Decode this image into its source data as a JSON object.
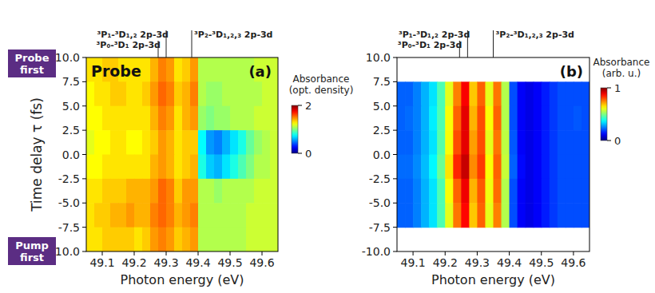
{
  "chart_data": [
    {
      "type": "heatmap",
      "title": "Probe",
      "panel": "(a)",
      "side_labels": [
        "Probe first",
        "Pump first"
      ],
      "xlabel": "Photon energy (eV)",
      "ylabel": "Time delay τ (fs)",
      "xlim": [
        49.05,
        49.65
      ],
      "ylim": [
        -10,
        10
      ],
      "xticks": [
        49.1,
        49.2,
        49.3,
        49.4,
        49.5,
        49.6
      ],
      "yticks": [
        {
          "value": 10,
          "label": "10.0"
        },
        7.5,
        {
          "value": 5,
          "label": "5.0"
        },
        2.5,
        {
          "value": 0,
          "label": "0.0"
        },
        -2.5,
        {
          "value": -5,
          "label": "-5.0"
        },
        -7.5,
        {
          "value": -10,
          "label": "-10.0"
        }
      ],
      "x_bins": [
        49.05,
        49.075,
        49.1,
        49.125,
        49.15,
        49.175,
        49.2,
        49.225,
        49.25,
        49.275,
        49.3,
        49.325,
        49.35,
        49.375,
        49.4,
        49.425,
        49.45,
        49.475,
        49.5,
        49.525,
        49.55,
        49.575,
        49.6,
        49.625,
        49.65
      ],
      "y_bins": [
        10,
        7.5,
        5,
        2.5,
        0,
        -2.5,
        -5,
        -7.5,
        -10
      ],
      "values": [
        [
          1.3,
          1.3,
          1.35,
          1.35,
          1.3,
          1.3,
          1.3,
          1.3,
          1.4,
          1.5,
          1.45,
          1.3,
          1.35,
          1.45,
          1.1,
          1.1,
          1.1,
          1.1,
          1.1,
          1.1,
          1.1,
          1.15,
          1.15,
          1.15
        ],
        [
          1.25,
          1.3,
          1.3,
          1.35,
          1.35,
          1.3,
          1.3,
          1.35,
          1.45,
          1.55,
          1.5,
          1.35,
          1.4,
          1.5,
          1.1,
          1.05,
          1.05,
          1.1,
          1.1,
          1.1,
          1.1,
          1.1,
          1.15,
          1.15
        ],
        [
          1.25,
          1.25,
          1.3,
          1.3,
          1.3,
          1.3,
          1.3,
          1.3,
          1.4,
          1.5,
          1.45,
          1.3,
          1.4,
          1.45,
          1.05,
          1.0,
          1.05,
          1.05,
          1.1,
          1.1,
          1.1,
          1.15,
          1.15,
          1.15
        ],
        [
          1.2,
          1.25,
          1.25,
          1.3,
          1.3,
          1.25,
          1.25,
          1.3,
          1.35,
          1.45,
          1.4,
          1.3,
          1.35,
          1.35,
          0.75,
          0.55,
          0.5,
          0.6,
          0.7,
          0.8,
          0.95,
          1.05,
          1.1,
          1.15
        ],
        [
          1.25,
          1.25,
          1.3,
          1.3,
          1.3,
          1.3,
          1.3,
          1.3,
          1.4,
          1.45,
          1.4,
          1.3,
          1.35,
          1.4,
          0.8,
          0.65,
          0.6,
          0.7,
          0.8,
          0.9,
          1.0,
          1.1,
          1.1,
          1.15
        ],
        [
          1.3,
          1.3,
          1.35,
          1.35,
          1.35,
          1.4,
          1.4,
          1.4,
          1.45,
          1.55,
          1.5,
          1.35,
          1.45,
          1.45,
          1.1,
          1.1,
          1.05,
          1.1,
          1.1,
          1.1,
          1.1,
          1.15,
          1.15,
          1.15
        ],
        [
          1.3,
          1.35,
          1.35,
          1.4,
          1.4,
          1.45,
          1.4,
          1.4,
          1.5,
          1.55,
          1.5,
          1.4,
          1.45,
          1.5,
          1.1,
          1.1,
          1.1,
          1.1,
          1.1,
          1.1,
          1.15,
          1.15,
          1.15,
          1.15
        ],
        [
          1.3,
          1.3,
          1.35,
          1.35,
          1.35,
          1.35,
          1.3,
          1.35,
          1.45,
          1.5,
          1.45,
          1.35,
          1.4,
          1.45,
          1.1,
          1.1,
          1.1,
          1.1,
          1.1,
          1.1,
          1.15,
          1.15,
          1.15,
          1.15
        ]
      ],
      "colorbar": {
        "label": [
          "Absorbance",
          "(opt. density)"
        ],
        "range": [
          0,
          2
        ],
        "ticks": [
          0,
          2
        ]
      },
      "annotations": [
        {
          "text": "³P₁-³D₁,₂ 2p-3d",
          "x": 49.3
        },
        {
          "text": "³P₀-³D₁ 2p-3d",
          "x": 49.275
        },
        {
          "text": "³P₂-³D₁,₂,₃ 2p-3d",
          "x": 49.38
        }
      ]
    },
    {
      "type": "heatmap",
      "panel": "(b)",
      "xlabel": "Photon energy (eV)",
      "xlim": [
        49.05,
        49.65
      ],
      "ylim": [
        -10,
        10
      ],
      "xticks": [
        49.1,
        49.2,
        49.3,
        49.4,
        49.5,
        49.6
      ],
      "yticks": [
        {
          "value": 10,
          "label": "10.0"
        },
        7.5,
        {
          "value": 5,
          "label": "5.0"
        },
        2.5,
        {
          "value": 0,
          "label": "0.0"
        },
        -2.5,
        {
          "value": -5,
          "label": "-5.0"
        },
        -7.5,
        {
          "value": -10,
          "label": "-10.0"
        }
      ],
      "x_bins": [
        49.05,
        49.075,
        49.1,
        49.125,
        49.15,
        49.175,
        49.2,
        49.225,
        49.25,
        49.275,
        49.3,
        49.325,
        49.35,
        49.375,
        49.4,
        49.425,
        49.45,
        49.475,
        49.5,
        49.525,
        49.55,
        49.575,
        49.6,
        49.625,
        49.65
      ],
      "y_bins": [
        7.5,
        5,
        2.5,
        0,
        -2.5,
        -5,
        -7.5
      ],
      "values": [
        [
          0.22,
          0.22,
          0.25,
          0.3,
          0.35,
          0.45,
          0.6,
          0.75,
          0.88,
          0.68,
          0.78,
          0.6,
          0.76,
          0.55,
          0.2,
          0.12,
          0.1,
          0.12,
          0.15,
          0.18,
          0.2,
          0.2,
          0.2,
          0.2
        ],
        [
          0.22,
          0.23,
          0.25,
          0.3,
          0.36,
          0.45,
          0.62,
          0.78,
          0.9,
          0.7,
          0.8,
          0.62,
          0.78,
          0.55,
          0.2,
          0.12,
          0.1,
          0.12,
          0.15,
          0.18,
          0.2,
          0.2,
          0.21,
          0.2
        ],
        [
          0.22,
          0.22,
          0.25,
          0.3,
          0.35,
          0.46,
          0.62,
          0.8,
          0.9,
          0.72,
          0.8,
          0.6,
          0.76,
          0.56,
          0.21,
          0.12,
          0.1,
          0.12,
          0.15,
          0.18,
          0.2,
          0.2,
          0.2,
          0.2
        ],
        [
          0.23,
          0.23,
          0.26,
          0.31,
          0.37,
          0.48,
          0.65,
          0.84,
          0.93,
          0.74,
          0.82,
          0.62,
          0.78,
          0.57,
          0.22,
          0.13,
          0.1,
          0.12,
          0.15,
          0.18,
          0.2,
          0.2,
          0.2,
          0.2
        ],
        [
          0.22,
          0.22,
          0.25,
          0.3,
          0.35,
          0.45,
          0.62,
          0.78,
          0.89,
          0.7,
          0.79,
          0.61,
          0.77,
          0.55,
          0.2,
          0.12,
          0.1,
          0.12,
          0.15,
          0.18,
          0.2,
          0.2,
          0.2,
          0.2
        ],
        [
          0.22,
          0.22,
          0.25,
          0.3,
          0.35,
          0.45,
          0.6,
          0.76,
          0.87,
          0.68,
          0.78,
          0.6,
          0.75,
          0.55,
          0.2,
          0.12,
          0.1,
          0.12,
          0.15,
          0.18,
          0.2,
          0.2,
          0.2,
          0.2
        ]
      ],
      "colorbar": {
        "label": [
          "Absorbance",
          "(arb. u.)"
        ],
        "range": [
          0,
          1
        ],
        "ticks": [
          0,
          1
        ]
      },
      "annotations": [
        {
          "text": "³P₁-³D₁,₂ 2p-3d",
          "x": 49.27
        },
        {
          "text": "³P₀-³D₁ 2p-3d",
          "x": 49.245
        },
        {
          "text": "³P₂-³D₁,₂,₃ 2p-3d",
          "x": 49.35
        }
      ]
    }
  ]
}
